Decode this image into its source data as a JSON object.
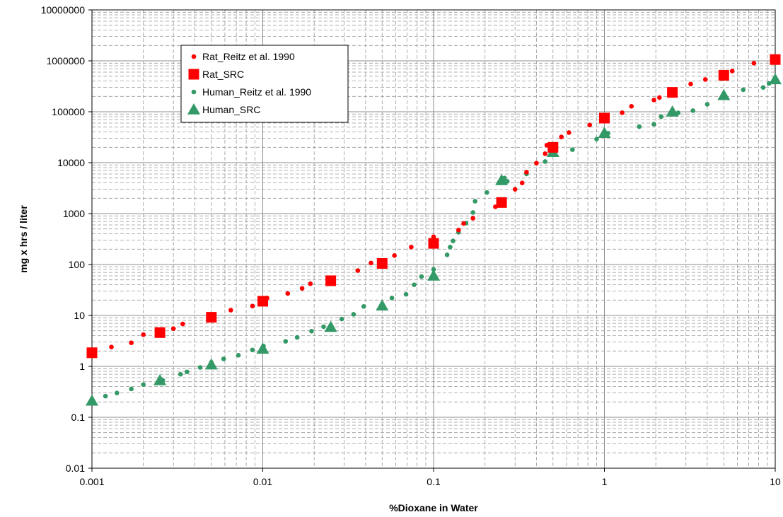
{
  "chart_data": {
    "type": "scatter",
    "xscale": "log",
    "yscale": "log",
    "xlim": [
      0.001,
      10
    ],
    "ylim": [
      0.01,
      10000000
    ],
    "xlabel": "%Dioxane in Water",
    "ylabel": "mg x hrs / liter",
    "grid": true,
    "legend_position": "top-left",
    "x_ticks": [
      "0.001",
      "0.01",
      "0.1",
      "1",
      "10"
    ],
    "y_ticks": [
      "0.01",
      "0.1",
      "1",
      "10",
      "100",
      "1000",
      "10000",
      "100000",
      "1000000",
      "10000000"
    ],
    "series": [
      {
        "name": "Rat_Reitz et al. 1990",
        "marker": "circle-small",
        "color": "#FF0000",
        "points": [
          [
            0.001,
            1.9
          ],
          [
            0.0013,
            2.4
          ],
          [
            0.0017,
            2.9
          ],
          [
            0.002,
            4.2
          ],
          [
            0.003,
            5.5
          ],
          [
            0.0034,
            6.8
          ],
          [
            0.005,
            9.0
          ],
          [
            0.0065,
            12.7
          ],
          [
            0.0087,
            15.3
          ],
          [
            0.0106,
            22
          ],
          [
            0.014,
            27
          ],
          [
            0.017,
            34
          ],
          [
            0.019,
            42
          ],
          [
            0.025,
            52
          ],
          [
            0.036,
            76
          ],
          [
            0.043,
            107
          ],
          [
            0.059,
            150
          ],
          [
            0.074,
            220
          ],
          [
            0.1,
            350
          ],
          [
            0.14,
            475
          ],
          [
            0.15,
            640
          ],
          [
            0.17,
            810
          ],
          [
            0.23,
            1360
          ],
          [
            0.3,
            3000
          ],
          [
            0.33,
            4000
          ],
          [
            0.35,
            6500
          ],
          [
            0.4,
            9800
          ],
          [
            0.45,
            15000
          ],
          [
            0.46,
            22000
          ],
          [
            0.56,
            32000
          ],
          [
            0.62,
            39000
          ],
          [
            0.82,
            55000
          ],
          [
            1.27,
            96000
          ],
          [
            1.44,
            128000
          ],
          [
            1.95,
            170000
          ],
          [
            2.1,
            190000
          ],
          [
            3.2,
            350000
          ],
          [
            3.9,
            430000
          ],
          [
            5.6,
            630000
          ],
          [
            7.5,
            900000
          ],
          [
            10,
            1050000
          ]
        ]
      },
      {
        "name": "Rat_SRC",
        "marker": "square",
        "color": "#FF0000",
        "points": [
          [
            0.001,
            1.85
          ],
          [
            0.0025,
            4.6
          ],
          [
            0.005,
            9.2
          ],
          [
            0.01,
            19
          ],
          [
            0.025,
            48
          ],
          [
            0.05,
            105
          ],
          [
            0.1,
            260
          ],
          [
            0.25,
            1650
          ],
          [
            0.5,
            20000
          ],
          [
            1,
            75000
          ],
          [
            2.5,
            240000
          ],
          [
            5,
            520000
          ],
          [
            10,
            1060000
          ]
        ]
      },
      {
        "name": "Human_Reitz et al. 1990",
        "marker": "circle-small",
        "color": "#339966",
        "points": [
          [
            0.0012,
            0.26
          ],
          [
            0.0014,
            0.3
          ],
          [
            0.0017,
            0.36
          ],
          [
            0.002,
            0.44
          ],
          [
            0.0026,
            0.53
          ],
          [
            0.0033,
            0.7
          ],
          [
            0.0036,
            0.78
          ],
          [
            0.0043,
            0.95
          ],
          [
            0.005,
            1.2
          ],
          [
            0.0059,
            1.4
          ],
          [
            0.0072,
            1.65
          ],
          [
            0.0087,
            2.1
          ],
          [
            0.0101,
            2.5
          ],
          [
            0.0136,
            3.1
          ],
          [
            0.0159,
            3.7
          ],
          [
            0.0193,
            4.9
          ],
          [
            0.0227,
            6.0
          ],
          [
            0.029,
            8.5
          ],
          [
            0.034,
            10.5
          ],
          [
            0.039,
            15
          ],
          [
            0.057,
            22
          ],
          [
            0.069,
            26
          ],
          [
            0.077,
            40
          ],
          [
            0.085,
            58
          ],
          [
            0.1,
            80
          ],
          [
            0.12,
            155
          ],
          [
            0.125,
            220
          ],
          [
            0.13,
            290
          ],
          [
            0.14,
            430
          ],
          [
            0.155,
            650
          ],
          [
            0.17,
            1050
          ],
          [
            0.175,
            1750
          ],
          [
            0.205,
            2600
          ],
          [
            0.26,
            5000
          ],
          [
            0.27,
            4300
          ],
          [
            0.35,
            6000
          ],
          [
            0.45,
            10500
          ],
          [
            0.65,
            18000
          ],
          [
            0.9,
            29000
          ],
          [
            1.05,
            38000
          ],
          [
            1.6,
            51000
          ],
          [
            1.95,
            57000
          ],
          [
            2.15,
            80000
          ],
          [
            2.7,
            95000
          ],
          [
            3.3,
            105000
          ],
          [
            4,
            140000
          ],
          [
            6.5,
            270000
          ],
          [
            8.5,
            300000
          ],
          [
            9.2,
            360000
          ]
        ]
      },
      {
        "name": "Human_SRC",
        "marker": "triangle",
        "color": "#339966",
        "points": [
          [
            0.001,
            0.21
          ],
          [
            0.0025,
            0.53
          ],
          [
            0.005,
            1.08
          ],
          [
            0.01,
            2.2
          ],
          [
            0.025,
            5.9
          ],
          [
            0.05,
            15.5
          ],
          [
            0.1,
            60
          ],
          [
            0.25,
            4500
          ],
          [
            0.5,
            16000
          ],
          [
            1,
            38000
          ],
          [
            2.5,
            100000
          ],
          [
            5,
            210000
          ],
          [
            10,
            430000
          ]
        ]
      }
    ]
  }
}
